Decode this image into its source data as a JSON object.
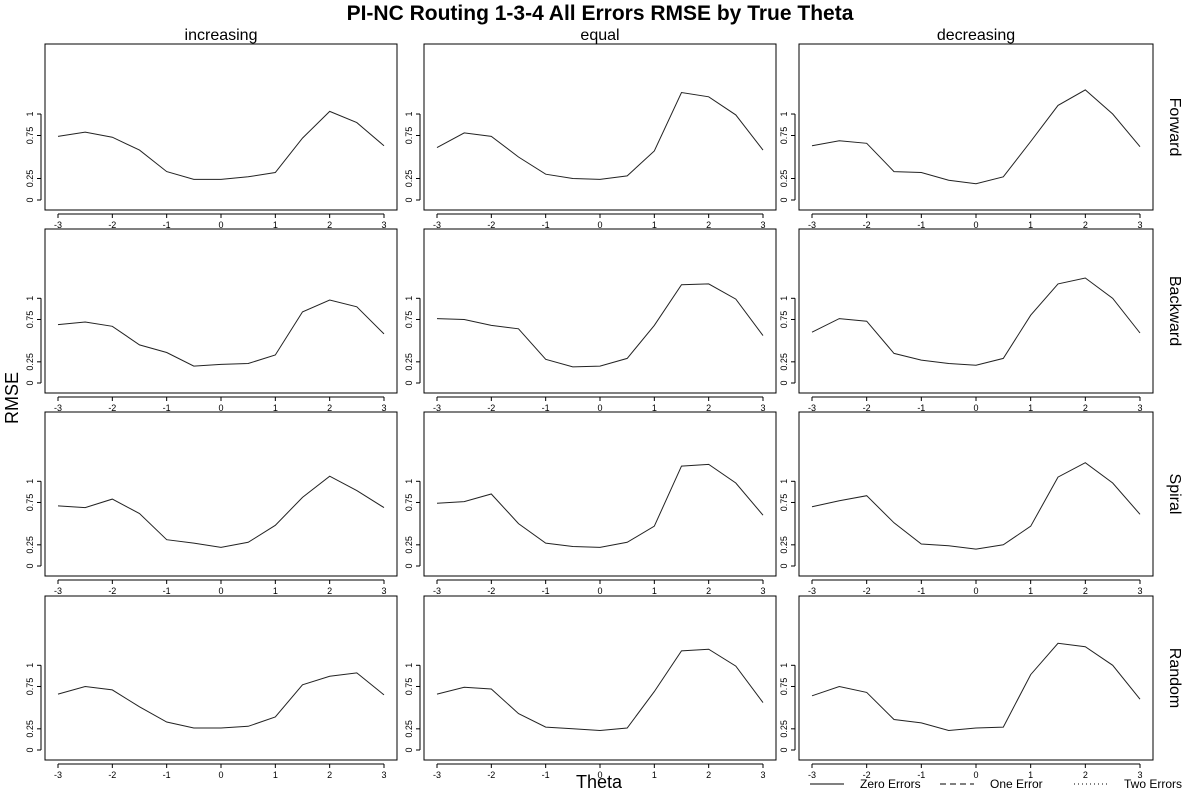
{
  "title": "PI-NC Routing 1-3-4 All Errors RMSE by True Theta",
  "xlabel": "Theta",
  "ylabel": "RMSE",
  "columns": [
    "increasing",
    "equal",
    "decreasing"
  ],
  "rows": [
    "Forward",
    "Backward",
    "Spiral",
    "Random"
  ],
  "x_ticks": [
    "-3",
    "-2",
    "-1",
    "0",
    "1",
    "2",
    "3"
  ],
  "y_ticks": [
    "0",
    "0.25",
    "0.75",
    "1"
  ],
  "legend": [
    {
      "label": "Zero Errors",
      "style": "solid"
    },
    {
      "label": "One Error",
      "style": "dashed"
    },
    {
      "label": "Two Errors",
      "style": "dotted"
    }
  ],
  "chart_data": {
    "type": "line",
    "x": [
      -3,
      -2.5,
      -2,
      -1.5,
      -1,
      -0.5,
      0,
      0.5,
      1,
      1.5,
      2,
      2.5,
      3
    ],
    "xlim": [
      -3,
      3
    ],
    "ylim": [
      0,
      1.2
    ],
    "panels": [
      {
        "row": "Forward",
        "column": "increasing",
        "series": [
          {
            "name": "Zero Errors",
            "values": [
              0.74,
              0.79,
              0.73,
              0.58,
              0.33,
              0.24,
              0.24,
              0.27,
              0.32,
              0.72,
              1.03,
              0.9,
              0.63
            ]
          }
        ]
      },
      {
        "row": "Forward",
        "column": "equal",
        "series": [
          {
            "name": "Zero Errors",
            "values": [
              0.61,
              0.78,
              0.74,
              0.5,
              0.3,
              0.25,
              0.24,
              0.28,
              0.57,
              1.25,
              1.2,
              0.99,
              0.58
            ]
          }
        ]
      },
      {
        "row": "Forward",
        "column": "decreasing",
        "series": [
          {
            "name": "Zero Errors",
            "values": [
              0.63,
              0.69,
              0.66,
              0.33,
              0.32,
              0.23,
              0.19,
              0.27,
              0.68,
              1.1,
              1.28,
              1.0,
              0.62
            ]
          }
        ]
      },
      {
        "row": "Backward",
        "column": "increasing",
        "series": [
          {
            "name": "Zero Errors",
            "values": [
              0.69,
              0.72,
              0.67,
              0.45,
              0.36,
              0.2,
              0.22,
              0.23,
              0.33,
              0.84,
              0.98,
              0.9,
              0.58
            ]
          }
        ]
      },
      {
        "row": "Backward",
        "column": "equal",
        "series": [
          {
            "name": "Zero Errors",
            "values": [
              0.76,
              0.75,
              0.68,
              0.64,
              0.28,
              0.19,
              0.2,
              0.29,
              0.68,
              1.16,
              1.17,
              0.99,
              0.56
            ]
          }
        ]
      },
      {
        "row": "Backward",
        "column": "decreasing",
        "series": [
          {
            "name": "Zero Errors",
            "values": [
              0.6,
              0.76,
              0.73,
              0.35,
              0.27,
              0.23,
              0.21,
              0.29,
              0.8,
              1.17,
              1.24,
              1.0,
              0.59
            ]
          }
        ]
      },
      {
        "row": "Spiral",
        "column": "increasing",
        "series": [
          {
            "name": "Zero Errors",
            "values": [
              0.71,
              0.69,
              0.79,
              0.62,
              0.31,
              0.27,
              0.22,
              0.28,
              0.48,
              0.81,
              1.06,
              0.89,
              0.69
            ]
          }
        ]
      },
      {
        "row": "Spiral",
        "column": "equal",
        "series": [
          {
            "name": "Zero Errors",
            "values": [
              0.74,
              0.76,
              0.85,
              0.5,
              0.27,
              0.23,
              0.22,
              0.28,
              0.47,
              1.18,
              1.2,
              0.98,
              0.6
            ]
          }
        ]
      },
      {
        "row": "Spiral",
        "column": "decreasing",
        "series": [
          {
            "name": "Zero Errors",
            "values": [
              0.7,
              0.77,
              0.83,
              0.51,
              0.26,
              0.24,
              0.2,
              0.25,
              0.47,
              1.05,
              1.22,
              0.98,
              0.61
            ]
          }
        ]
      },
      {
        "row": "Random",
        "column": "increasing",
        "series": [
          {
            "name": "Zero Errors",
            "values": [
              0.66,
              0.75,
              0.71,
              0.51,
              0.33,
              0.26,
              0.26,
              0.28,
              0.39,
              0.77,
              0.87,
              0.91,
              0.65
            ]
          }
        ]
      },
      {
        "row": "Random",
        "column": "equal",
        "series": [
          {
            "name": "Zero Errors",
            "values": [
              0.66,
              0.74,
              0.72,
              0.43,
              0.27,
              0.25,
              0.23,
              0.26,
              0.69,
              1.17,
              1.19,
              0.99,
              0.56
            ]
          }
        ]
      },
      {
        "row": "Random",
        "column": "decreasing",
        "series": [
          {
            "name": "Zero Errors",
            "values": [
              0.64,
              0.75,
              0.68,
              0.36,
              0.32,
              0.23,
              0.26,
              0.27,
              0.89,
              1.26,
              1.22,
              1.0,
              0.6
            ]
          }
        ]
      }
    ]
  }
}
